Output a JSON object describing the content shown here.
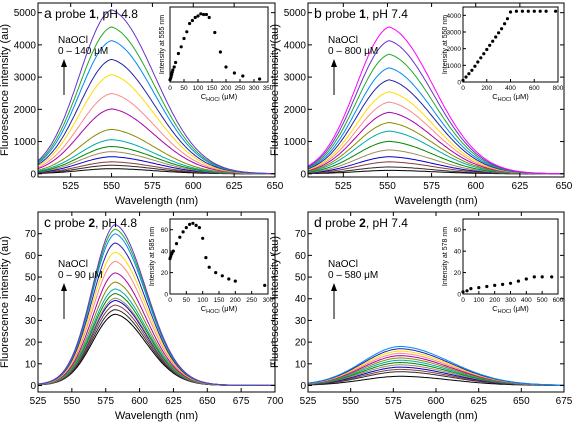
{
  "palette": [
    "#000000",
    "#2b2b2b",
    "#8b3a3a",
    "#0000cc",
    "#a08b5b",
    "#008800",
    "#00aaaa",
    "#8a8a00",
    "#aa00aa",
    "#ff8888",
    "#ffdd00",
    "#2222aa",
    "#0088ff",
    "#22aa22",
    "#6633cc",
    "#ff00ff"
  ],
  "chart_data": [
    {
      "type": "line",
      "panel_letter": "a",
      "title_pre": "probe ",
      "title_bold": "1",
      "title_post": ", pH 4.8",
      "xlabel": "Wavelength (nm)",
      "ylabel": "Fluorescence intensity (au)",
      "xlim": [
        505,
        650
      ],
      "ylim": [
        -100,
        5300
      ],
      "xticks": [
        525,
        550,
        575,
        600,
        625,
        650
      ],
      "yticks": [
        0,
        1000,
        2000,
        3000,
        4000,
        5000
      ],
      "peak_x": 550,
      "curve_width": 20,
      "curve_tail": 18,
      "peaks": [
        150,
        250,
        350,
        500,
        650,
        800,
        1000,
        1300,
        1900,
        2350,
        2900,
        3350,
        3900,
        4300,
        4800
      ],
      "annotation": {
        "line1": "NaOCl",
        "line2": "0 – 140 μM"
      },
      "inset": {
        "type": "scatter",
        "ylabel": "Intensity at 555 nm",
        "xlabel_pre": "C",
        "xlabel_sub": "HOCl",
        "xlabel_post": " (μM)",
        "xlim": [
          0,
          350
        ],
        "ylim": [
          0,
          5000
        ],
        "xticks": [
          0,
          50,
          100,
          150,
          200,
          250,
          300,
          350
        ],
        "yticks": [],
        "x": [
          0,
          2,
          4,
          6,
          8,
          10,
          15,
          20,
          30,
          40,
          50,
          60,
          70,
          80,
          90,
          100,
          110,
          120,
          130,
          140,
          160,
          180,
          200,
          230,
          260,
          320
        ],
        "y": [
          150,
          250,
          350,
          500,
          650,
          800,
          1000,
          1300,
          1900,
          2350,
          2900,
          3350,
          3900,
          4100,
          4300,
          4400,
          4550,
          4500,
          4500,
          4300,
          3300,
          2000,
          1000,
          600,
          400,
          200
        ]
      }
    },
    {
      "type": "line",
      "panel_letter": "b",
      "title_pre": "probe ",
      "title_bold": "1",
      "title_post": ", pH 7.4",
      "xlabel": "Wavelength (nm)",
      "ylabel": "Fluorescence intensity (au)",
      "xlim": [
        505,
        650
      ],
      "ylim": [
        -100,
        5300
      ],
      "xticks": [
        525,
        550,
        575,
        600,
        625,
        650
      ],
      "yticks": [
        0,
        1000,
        2000,
        3000,
        4000,
        5000
      ],
      "peak_x": 551,
      "curve_width": 19,
      "curve_tail": 15,
      "peaks": [
        100,
        200,
        350,
        500,
        700,
        950,
        1250,
        1500,
        1800,
        2100,
        2400,
        2750,
        3100,
        3500,
        3900,
        4300
      ],
      "annotation": {
        "line1": "NaOCl",
        "line2": "0 – 800 μM"
      },
      "inset": {
        "type": "scatter",
        "ylabel": "Intensity at 550 nm",
        "xlabel_pre": "C",
        "xlabel_sub": "HOCl",
        "xlabel_post": " (μM)",
        "xlim": [
          0,
          800
        ],
        "ylim": [
          0,
          4500
        ],
        "xticks": [
          0,
          200,
          400,
          600,
          800
        ],
        "yticks": [
          0,
          1000,
          2000,
          3000,
          4000
        ],
        "x": [
          0,
          25,
          50,
          75,
          100,
          125,
          150,
          175,
          200,
          225,
          250,
          275,
          300,
          325,
          350,
          375,
          400,
          450,
          500,
          550,
          600,
          650,
          700,
          780
        ],
        "y": [
          100,
          300,
          500,
          700,
          950,
          1200,
          1450,
          1700,
          1950,
          2200,
          2450,
          2700,
          2950,
          3200,
          3500,
          3800,
          4200,
          4250,
          4250,
          4250,
          4250,
          4250,
          4250,
          4250
        ]
      }
    },
    {
      "type": "line",
      "panel_letter": "c",
      "title_pre": "probe ",
      "title_bold": "2",
      "title_post": ", pH 4.8",
      "xlabel": "Wavelength (nm)",
      "ylabel": "Fluorescence intensity (au)",
      "xlim": [
        525,
        700
      ],
      "ylim": [
        -3,
        80
      ],
      "xticks": [
        525,
        550,
        575,
        600,
        625,
        650,
        675,
        700
      ],
      "yticks": [
        0,
        10,
        20,
        30,
        40,
        50,
        60,
        70
      ],
      "peak_x": 582,
      "curve_width": 17,
      "curve_tail": 25,
      "peaks": [
        31,
        33,
        35,
        37,
        38,
        40,
        42,
        45,
        49,
        54,
        58,
        62,
        66,
        68,
        70
      ],
      "annotation": {
        "line1": "NaOCl",
        "line2": "0 – 90 μM"
      },
      "inset": {
        "type": "scatter",
        "ylabel": "Intensity at 585 nm",
        "xlabel_pre": "C",
        "xlabel_sub": "HOCl",
        "xlabel_post": " (μM)",
        "xlim": [
          0,
          300
        ],
        "ylim": [
          0,
          70
        ],
        "xticks": [
          0,
          50,
          100,
          150,
          200,
          250,
          300
        ],
        "yticks": [
          0,
          20,
          40,
          60
        ],
        "x": [
          0,
          2,
          4,
          6,
          10,
          20,
          30,
          40,
          50,
          60,
          70,
          80,
          90,
          100,
          110,
          120,
          140,
          160,
          180,
          200,
          290
        ],
        "y": [
          33,
          35,
          37,
          38,
          40,
          47,
          53,
          58,
          62,
          65,
          66,
          64,
          62,
          52,
          34,
          25,
          20,
          17,
          14,
          12,
          8
        ]
      }
    },
    {
      "type": "line",
      "panel_letter": "d",
      "title_pre": "probe ",
      "title_bold": "2",
      "title_post": ", pH 7.4",
      "xlabel": "Wavelength (nm)",
      "ylabel": "Fluorescence intensity (au)",
      "xlim": [
        525,
        675
      ],
      "ylim": [
        -3,
        80
      ],
      "xticks": [
        525,
        550,
        575,
        600,
        625,
        650,
        675
      ],
      "yticks": [
        0,
        10,
        20,
        30,
        40,
        50,
        60,
        70
      ],
      "peak_x": 579,
      "curve_width": 22,
      "curve_tail": 40,
      "peaks": [
        4,
        6,
        7,
        8,
        9,
        10,
        11,
        12,
        13,
        14,
        15,
        16,
        17
      ],
      "annotation": {
        "line1": "NaOCl",
        "line2": "0 – 580 μM"
      },
      "inset": {
        "type": "scatter",
        "ylabel": "Intensity at 578 nm",
        "xlabel_pre": "C",
        "xlabel_sub": "HOCl",
        "xlabel_post": " (μM)",
        "xlim": [
          0,
          600
        ],
        "ylim": [
          0,
          70
        ],
        "xticks": [
          0,
          100,
          200,
          300,
          400,
          500,
          600
        ],
        "yticks": [
          0,
          20,
          40,
          60
        ],
        "x": [
          0,
          25,
          50,
          100,
          150,
          200,
          250,
          300,
          350,
          400,
          450,
          500,
          560
        ],
        "y": [
          2,
          3,
          5,
          6,
          7,
          8,
          9,
          10,
          12,
          14,
          16,
          16,
          16
        ]
      }
    }
  ]
}
